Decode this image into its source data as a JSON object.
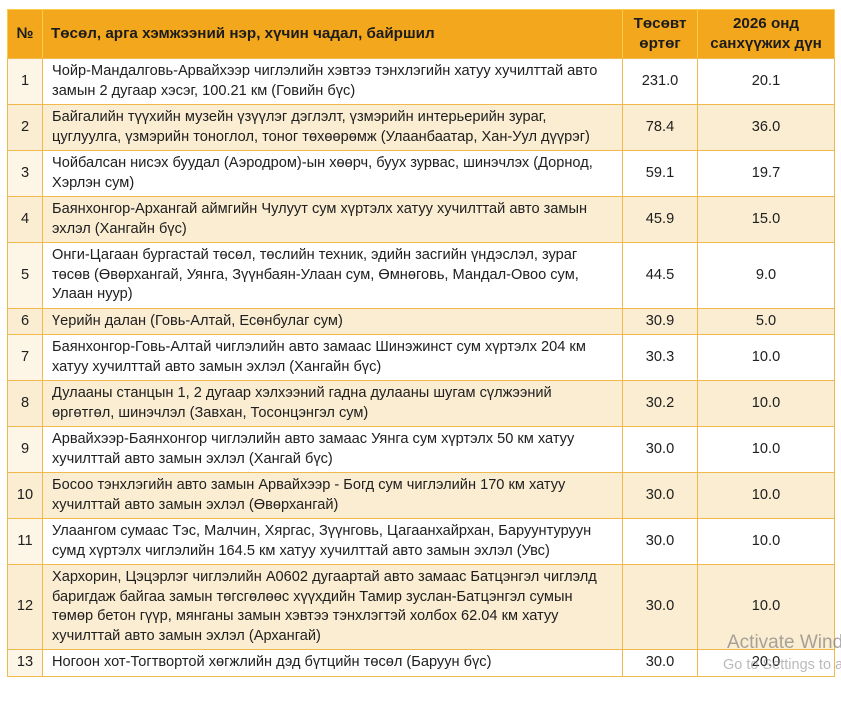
{
  "colors": {
    "header_bg": "#f2a71d",
    "border": "#f0b94e",
    "row_stripe": "#faedd2",
    "num_column_tint": "#fdf5e6",
    "text": "#202020"
  },
  "table": {
    "headers": {
      "num": "№",
      "name": "Төсөл, арга хэмжээний нэр, хүчин чадал, байршил",
      "budget": "Төсөвт өртөг",
      "y2026": "2026 онд санхүүжих дүн"
    },
    "rows": [
      {
        "num": "1",
        "name": "Чойр-Мандалговь-Арвайхээр чиглэлийн хэвтээ тэнхлэгийн хатуу хучилттай авто замын 2 дугаар хэсэг, 100.21 км (Говийн бүс)",
        "budget": "231.0",
        "y2026": "20.1"
      },
      {
        "num": "2",
        "name": "Байгалийн түүхийн музейн үзүүлэг дэглэлт, үзмэрийн интерьерийн зураг, цуглуулга, үзмэрийн тоноглол, тоног төхөөрөмж (Улаанбаатар, Хан-Уул дүүрэг)",
        "budget": "78.4",
        "y2026": "36.0"
      },
      {
        "num": "3",
        "name": "Чойбалсан нисэх буудал (Аэродром)-ын хөөрч, буух зурвас, шинэчлэх (Дорнод, Хэрлэн сум)",
        "budget": "59.1",
        "y2026": "19.7"
      },
      {
        "num": "4",
        "name": "Баянхонгор-Архангай аймгийн Чулуут сум хүртэлх хатуу хучилттай авто замын эхлэл (Хангайн бүс)",
        "budget": "45.9",
        "y2026": "15.0"
      },
      {
        "num": "5",
        "name": "Онги-Цагаан бургастай төсөл, төслийн техник, эдийн засгийн үндэслэл, зураг төсөв (Өвөрхангай, Уянга, Зүүнбаян-Улаан сум, Өмнөговь, Мандал-Овоо сум, Улаан нуур)",
        "budget": "44.5",
        "y2026": "9.0"
      },
      {
        "num": "6",
        "name": "Үерийн далан (Говь-Алтай, Есөнбулаг сум)",
        "budget": "30.9",
        "y2026": "5.0"
      },
      {
        "num": "7",
        "name": "Баянхонгор-Говь-Алтай чиглэлийн авто замаас Шинэжинст сум хүртэлх 204 км хатуу хучилттай авто замын эхлэл (Хангайн бүс)",
        "budget": "30.3",
        "y2026": "10.0"
      },
      {
        "num": "8",
        "name": "Дулааны станцын 1, 2 дугаар хэлхээний гадна дулааны шугам сүлжээний өргөтгөл, шинэчлэл (Завхан, Тосонцэнгэл сум)",
        "budget": "30.2",
        "y2026": "10.0"
      },
      {
        "num": "9",
        "name": "Арвайхээр-Баянхонгор чиглэлийн авто замаас Уянга сум хүртэлх 50 км хатуу хучилттай авто замын эхлэл (Хангай бүс)",
        "budget": "30.0",
        "y2026": "10.0"
      },
      {
        "num": "10",
        "name": "Босоо тэнхлэгийн авто замын Арвайхээр - Богд сум чиглэлийн 170 км хатуу хучилттай авто замын эхлэл (Өвөрхангай)",
        "budget": "30.0",
        "y2026": "10.0"
      },
      {
        "num": "11",
        "name": "Улаангом сумаас Тэс, Малчин, Хяргас, Зүүнговь, Цагаанхайрхан, Баруунтуруун сумд хүртэлх чиглэлийн 164.5 км хатуу хучилттай авто замын эхлэл (Увс)",
        "budget": "30.0",
        "y2026": "10.0"
      },
      {
        "num": "12",
        "name": "Хархорин, Цэцэрлэг чиглэлийн А0602 дугаартай авто замаас Батцэнгэл чиглэлд баригдаж байгаа замын төгсгөлөөс хүүхдийн Тамир зуслан-Батцэнгэл сумын төмөр бетон гүүр, мянганы замын хэвтээ тэнхлэгтэй холбох 62.04 км хатуу хучилттай авто замын эхлэл (Архангай)",
        "budget": "30.0",
        "y2026": "10.0"
      },
      {
        "num": "13",
        "name": "Ногоон хот-Тогтвортой хөгжлийн дэд бүтцийн төсөл (Баруун бүс)",
        "budget": "30.0",
        "y2026": "20.0"
      }
    ]
  },
  "watermark": {
    "line1": "Activate Windows",
    "line2": "Go to Settings to activate Windows."
  }
}
